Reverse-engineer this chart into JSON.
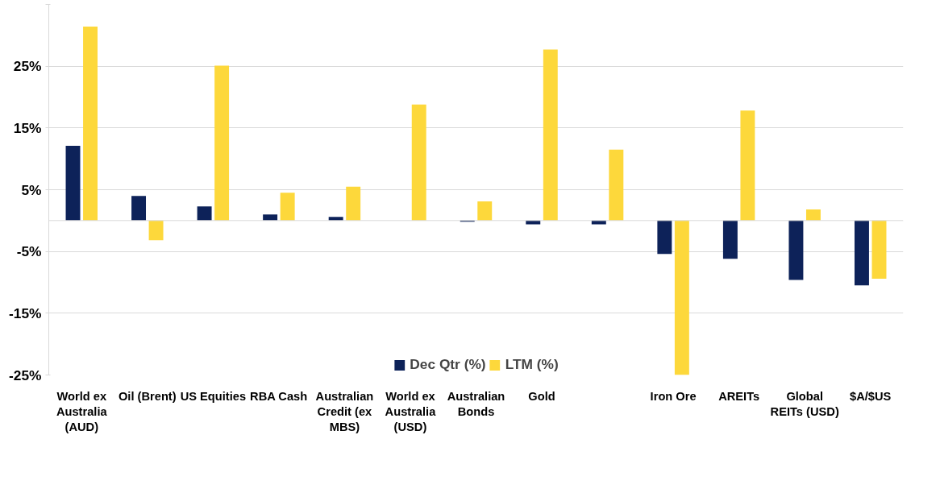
{
  "chart_data": {
    "type": "bar",
    "categories": [
      "World ex Australia (AUD)",
      "Oil (Brent)",
      "US Equities",
      "RBA Cash",
      "Australian Credit (ex MBS)",
      "World ex Australia (USD)",
      "Australian Bonds",
      "Gold",
      null,
      "Iron Ore",
      "AREITs",
      "Global REITs (USD)",
      "$A/$US"
    ],
    "series": [
      {
        "name": "Dec Qtr (%)",
        "color": "#0d2259",
        "values": [
          12.1,
          4.0,
          2.3,
          1.0,
          0.6,
          0.0,
          -0.2,
          -0.6,
          -0.6,
          -5.4,
          -6.2,
          -9.6,
          -10.5
        ]
      },
      {
        "name": "LTM (%)",
        "color": "#fdd83b",
        "values": [
          31.4,
          -3.2,
          25.1,
          4.5,
          5.5,
          18.8,
          3.1,
          27.7,
          11.5,
          -25.0,
          17.8,
          1.8,
          -9.4
        ]
      }
    ],
    "ylim": [
      -25,
      35
    ],
    "yticks": [
      {
        "value": -25,
        "label": "-25%"
      },
      {
        "value": -15,
        "label": "-15%"
      },
      {
        "value": -5,
        "label": "-5%"
      },
      {
        "value": 5,
        "label": "5%"
      },
      {
        "value": 15,
        "label": "15%"
      },
      {
        "value": 25,
        "label": "25%"
      },
      {
        "value": 35,
        "label": null
      }
    ],
    "grid": "y",
    "legend": "bottom"
  }
}
